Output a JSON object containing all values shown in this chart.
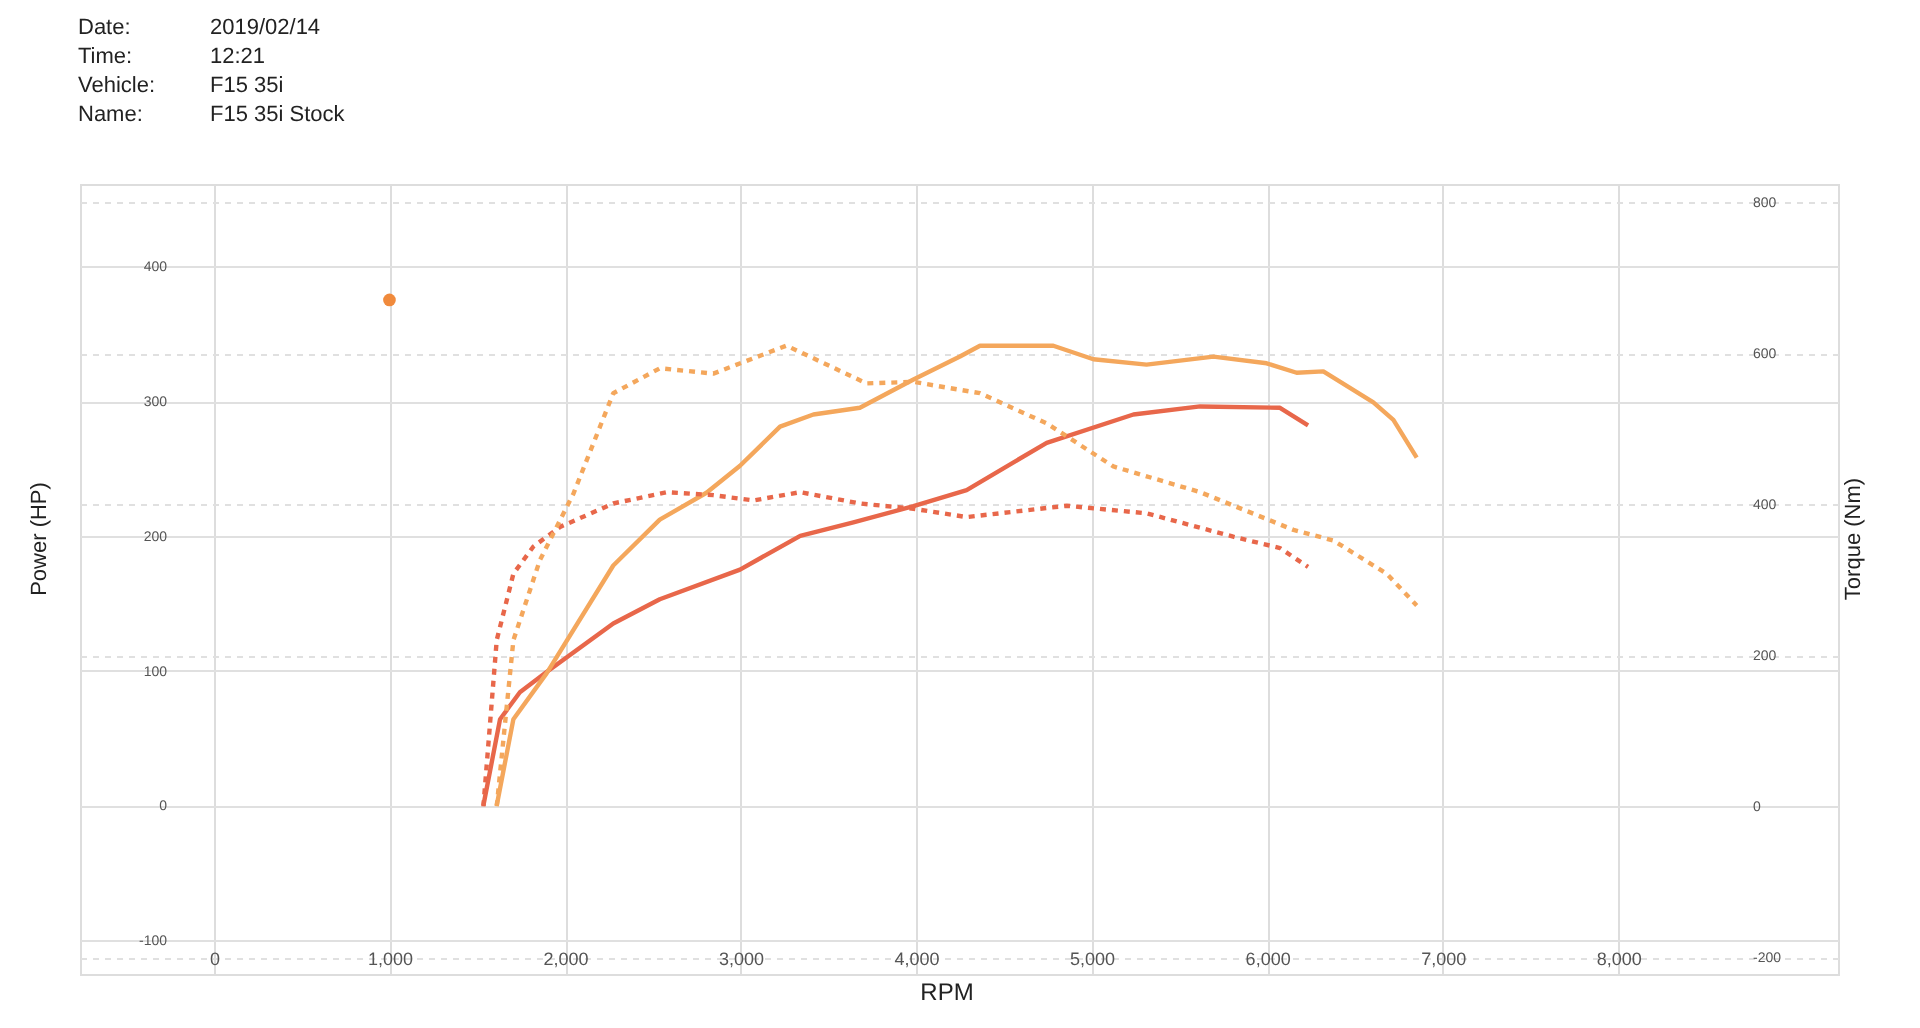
{
  "chart_data": {
    "type": "line",
    "xlabel": "RPM",
    "ylabel": "Power (HP)",
    "y2label": "Torque (Nm)",
    "annotations": [
      "Date:",
      "2019/02/14",
      "Time:",
      "12:21",
      "Vehicle:",
      "F15 35i",
      "Name:",
      "F15 35i Stock"
    ],
    "xlim": [
      -763,
      9252
    ],
    "ylim": [
      -125,
      461
    ],
    "y2lim": [
      -222,
      824
    ],
    "xticks": [
      {
        "value": 0,
        "label": "0"
      },
      {
        "value": 1000,
        "label": "1,000"
      },
      {
        "value": 2000,
        "label": "2,000"
      },
      {
        "value": 3000,
        "label": "3,000"
      },
      {
        "value": 4000,
        "label": "4,000"
      },
      {
        "value": 5000,
        "label": "5,000"
      },
      {
        "value": 6000,
        "label": "6,000"
      },
      {
        "value": 7000,
        "label": "7,000"
      },
      {
        "value": 8000,
        "label": "8,000"
      }
    ],
    "yticks": [
      -100,
      0,
      100,
      200,
      300,
      400
    ],
    "y2ticks": [
      -200,
      0,
      200,
      400,
      600,
      800
    ],
    "grid": true,
    "series": [
      {
        "line_style": "solid",
        "color": "#e8674a",
        "x": [
          1535,
          1630,
          1743,
          1895,
          2275,
          2540,
          2997,
          3340,
          3643,
          3985,
          4288,
          4744,
          5238,
          5618,
          6073,
          6233
        ],
        "values": [
          0,
          64,
          84,
          99,
          135,
          153,
          175,
          200,
          210,
          222,
          234,
          269,
          290,
          296,
          295,
          282
        ]
      },
      {
        "line_style": "solid",
        "color": "#f4a75c",
        "x": [
          1611,
          1706,
          1895,
          2275,
          2540,
          2806,
          2997,
          3225,
          3415,
          3680,
          3985,
          4250,
          4364,
          4782,
          5010,
          5313,
          5694,
          5997,
          6168,
          6320,
          6605,
          6719,
          6852
        ],
        "values": [
          0,
          64,
          98,
          178,
          212,
          232,
          252,
          281,
          290,
          295,
          316,
          333,
          341,
          341,
          331,
          327,
          333,
          328,
          321,
          322,
          299,
          286,
          258
        ]
      },
      {
        "line_style": "dotted",
        "axis": "y2",
        "color": "#e8674a",
        "x": [
          1535,
          1611,
          1706,
          1820,
          1972,
          2275,
          2579,
          2845,
          3073,
          3340,
          3680,
          3985,
          4288,
          4858,
          5313,
          5807,
          6073,
          6233
        ],
        "values": [
          0,
          220,
          308,
          344,
          370,
          401,
          416,
          412,
          405,
          416,
          401,
          394,
          383,
          398,
          388,
          357,
          342,
          317
        ]
      },
      {
        "line_style": "dotted",
        "axis": "y2",
        "color": "#f4a75c",
        "x": [
          1611,
          1706,
          1857,
          2048,
          2275,
          2540,
          2845,
          3262,
          3718,
          3985,
          4364,
          4744,
          5124,
          5618,
          6150,
          6377,
          6681,
          6852
        ],
        "values": [
          0,
          220,
          326,
          414,
          547,
          580,
          573,
          610,
          560,
          562,
          547,
          507,
          450,
          416,
          366,
          352,
          308,
          266
        ]
      },
      {
        "type": "scatter",
        "marker": "circle",
        "color": "#f08a3c",
        "x": [
          1000
        ],
        "values": [
          375
        ]
      }
    ]
  }
}
